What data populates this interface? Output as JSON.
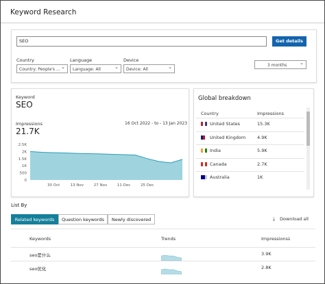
{
  "header": {
    "title": "Keyword Research"
  },
  "search": {
    "query": "SEO",
    "button": "Get details"
  },
  "filters": [
    {
      "label": "Country",
      "value": "Country: People's ..."
    },
    {
      "label": "Language",
      "value": "Language: All"
    },
    {
      "label": "Device",
      "value": "Device: All"
    }
  ],
  "date_range": "3 months",
  "summary": {
    "label": "Keyword",
    "keyword": "SEO",
    "metric": "Impressions",
    "total": "21.7K",
    "period": "16 Oct 2022 - to - 13 Jan 2023"
  },
  "trend_chart": {
    "type": "area",
    "color": "#9fd4de",
    "line_color": "#2a9bb5",
    "categories": [
      null,
      null,
      "30 Oct",
      null,
      "13 Nov",
      null,
      "27 Nov",
      null,
      "11 Dec",
      null,
      "25 Dec",
      null,
      null,
      null
    ],
    "values": [
      2000,
      1950,
      1920,
      1900,
      1870,
      1850,
      1830,
      1800,
      1780,
      1750,
      1500,
      1300,
      1200,
      1450
    ],
    "ylim": [
      0,
      2500
    ],
    "yticks": [
      0,
      500,
      {
        "value": 1000,
        "label": "1K"
      },
      {
        "value": 1500,
        "label": "1.5K"
      },
      {
        "value": 2000,
        "label": "2K"
      },
      {
        "value": 2500,
        "label": "2.5K"
      }
    ]
  },
  "breakdown": {
    "title": "Global breakdown",
    "columns": [
      "Country",
      "Impressions"
    ],
    "rows": [
      [
        "United States",
        "15.3K"
      ],
      [
        "United Kingdom",
        "4.9K"
      ],
      [
        "India",
        "5.9K"
      ],
      [
        "Canada",
        "2.7K"
      ],
      [
        "Australia",
        "1K"
      ]
    ]
  },
  "list": {
    "title": "List By",
    "tabs": [
      "Related keywords",
      "Question keywords",
      "Newly discovered"
    ],
    "download": "Download all",
    "columns": [
      "Keywords",
      "Trends",
      "Impressions"
    ],
    "rows": [
      [
        "seo是什么",
        "3.9K"
      ],
      [
        "seo优化",
        "2.8K"
      ]
    ]
  }
}
